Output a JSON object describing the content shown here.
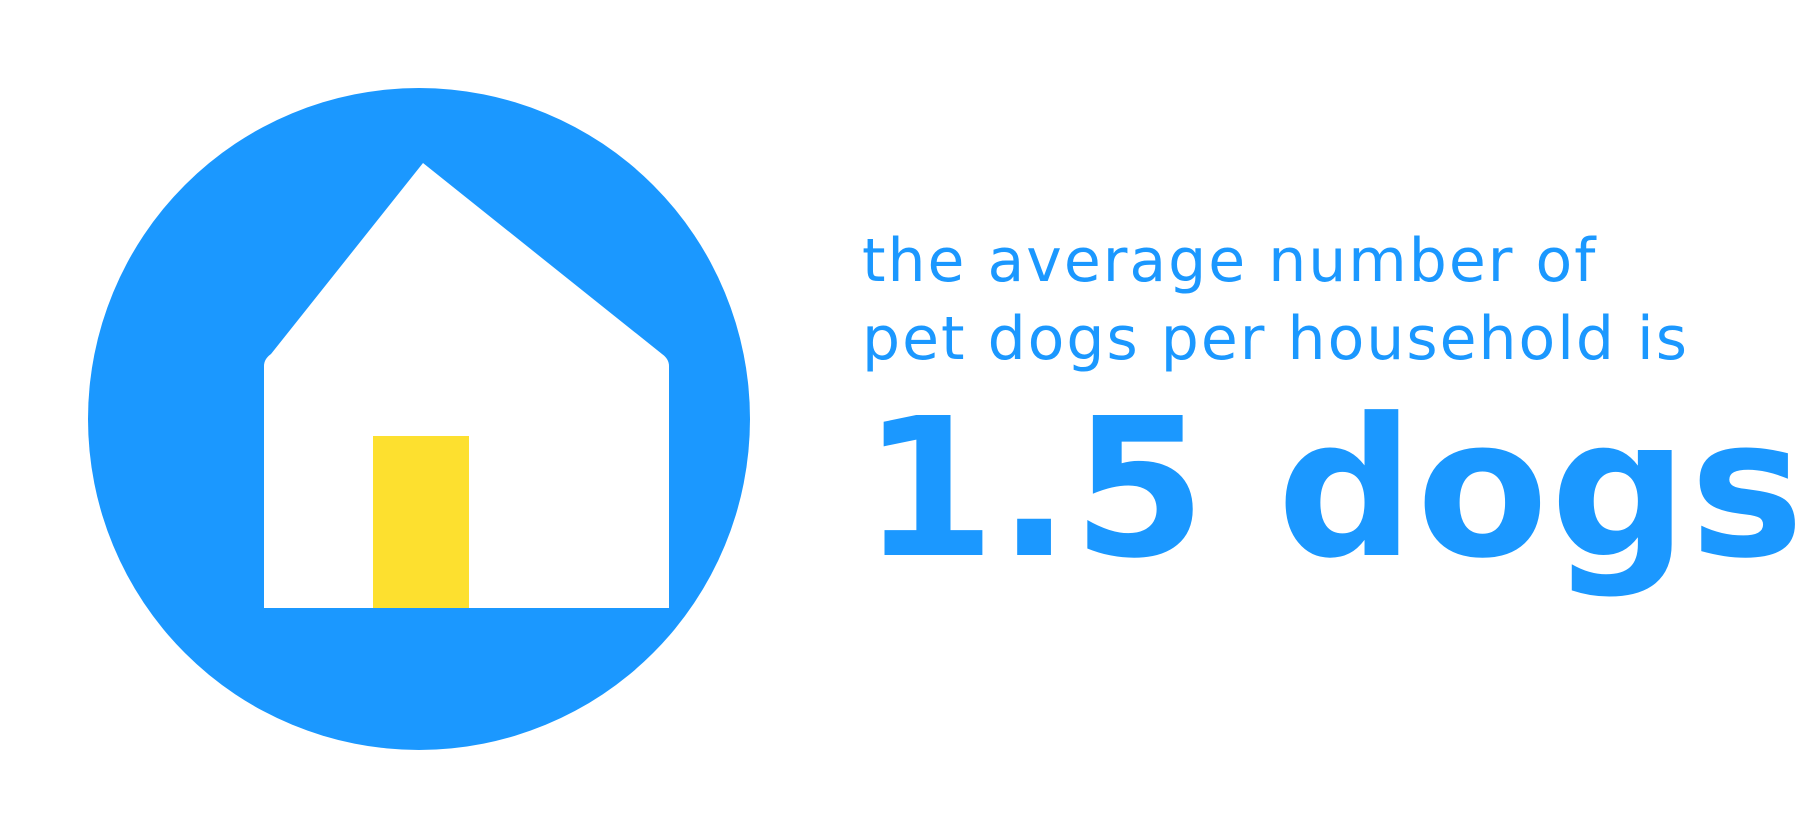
{
  "colors": {
    "circle": "#1b98ff",
    "house": "#ffffff",
    "door": "#fde02f",
    "text": "#1b98ff"
  },
  "icon": {
    "name": "house-icon"
  },
  "statement": {
    "line1": "the average number of",
    "line2": "pet dogs per household is",
    "value": "1.5 dogs"
  }
}
